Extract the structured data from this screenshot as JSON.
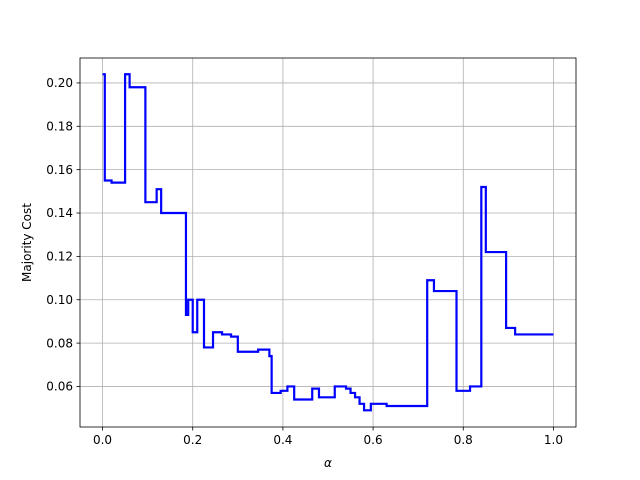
{
  "chart_data": {
    "type": "line",
    "title": "",
    "xlabel": "α",
    "ylabel": "Majority Cost",
    "xlim": [
      -0.05,
      1.05
    ],
    "ylim": [
      0.0413,
      0.2115
    ],
    "grid": true,
    "xticks": [
      0.0,
      0.2,
      0.4,
      0.6,
      0.8,
      1.0
    ],
    "xtick_labels": [
      "0.0",
      "0.2",
      "0.4",
      "0.6",
      "0.8",
      "1.0"
    ],
    "yticks": [
      0.06,
      0.08,
      0.1,
      0.12,
      0.14,
      0.16,
      0.18,
      0.2
    ],
    "ytick_labels": [
      "0.06",
      "0.08",
      "0.10",
      "0.12",
      "0.14",
      "0.16",
      "0.18",
      "0.20"
    ],
    "series": [
      {
        "color": "#0000ff",
        "step": true,
        "x": [
          0.0,
          0.005,
          0.02,
          0.05,
          0.06,
          0.095,
          0.1,
          0.12,
          0.13,
          0.185,
          0.19,
          0.2,
          0.21,
          0.225,
          0.245,
          0.265,
          0.285,
          0.3,
          0.305,
          0.345,
          0.37,
          0.375,
          0.385,
          0.395,
          0.4,
          0.41,
          0.425,
          0.44,
          0.465,
          0.48,
          0.485,
          0.515,
          0.54,
          0.55,
          0.56,
          0.57,
          0.58,
          0.595,
          0.63,
          0.72,
          0.735,
          0.785,
          0.815,
          0.84,
          0.85,
          0.895,
          0.915,
          1.0
        ],
        "y": [
          0.204,
          0.155,
          0.154,
          0.204,
          0.198,
          0.145,
          0.145,
          0.151,
          0.14,
          0.093,
          0.1,
          0.085,
          0.1,
          0.078,
          0.085,
          0.084,
          0.083,
          0.076,
          0.076,
          0.077,
          0.074,
          0.057,
          0.057,
          0.058,
          0.058,
          0.06,
          0.054,
          0.054,
          0.059,
          0.055,
          0.055,
          0.06,
          0.059,
          0.057,
          0.055,
          0.052,
          0.049,
          0.052,
          0.051,
          0.109,
          0.104,
          0.058,
          0.06,
          0.152,
          0.122,
          0.087,
          0.084,
          0.084
        ]
      }
    ]
  }
}
